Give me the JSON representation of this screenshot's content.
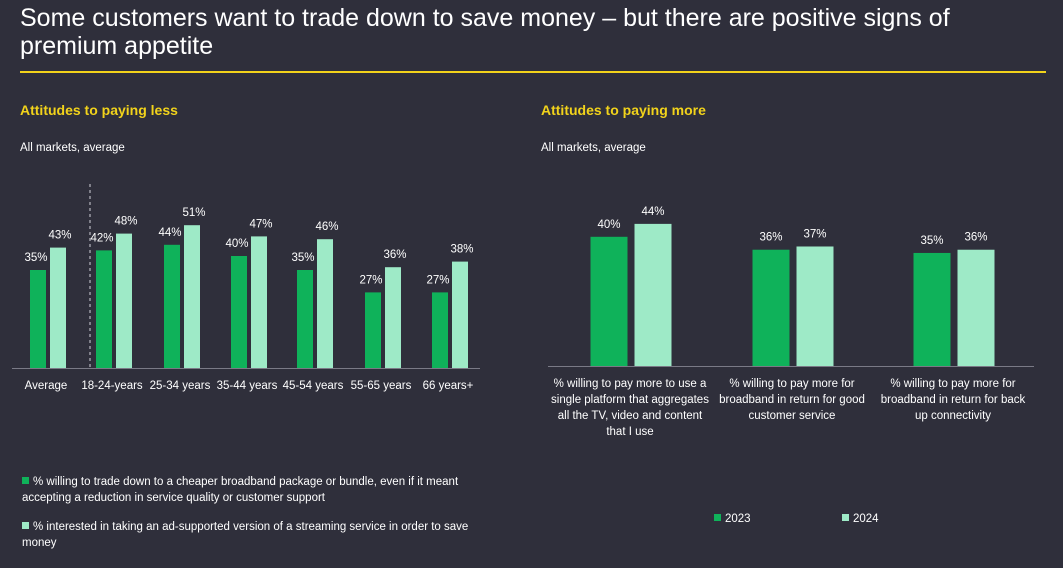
{
  "title": "Some customers want to trade down to save money – but there are positive signs of premium appetite",
  "colors": {
    "series_2023": "#0fb25a",
    "series_2024": "#9eeac7",
    "accent": "#f2d31b",
    "background": "#2f2f3b"
  },
  "chart_data": [
    {
      "type": "bar",
      "title": "Attitudes to paying less",
      "subtitle": "All markets, average",
      "categories": [
        "Average",
        "18-24-years",
        "25-34 years",
        "35-44 years",
        "45-54 years",
        "55-65 years",
        "66 years+"
      ],
      "series": [
        {
          "name": "% willing to trade down to a cheaper broadband package or bundle, even if it meant accepting a reduction in service quality or customer support",
          "values": [
            35,
            42,
            44,
            40,
            35,
            27,
            27
          ]
        },
        {
          "name": "% interested in taking an ad-supported version of a streaming service in order to save money",
          "values": [
            43,
            48,
            51,
            47,
            46,
            36,
            38
          ]
        }
      ],
      "value_labels": [
        [
          "35%",
          "42%",
          "44%",
          "40%",
          "35%",
          "27%",
          "27%"
        ],
        [
          "43%",
          "48%",
          "51%",
          "47%",
          "46%",
          "36%",
          "38%"
        ]
      ],
      "ylim": [
        0,
        60
      ],
      "legend_position": "bottom"
    },
    {
      "type": "bar",
      "title": "Attitudes to paying more",
      "subtitle": "All markets, average",
      "categories": [
        "% willing to pay more to use a single platform that aggregates all the TV, video and content that I use",
        "% willing to pay more for broadband in return for good customer service",
        "% willing to pay more for broadband in return for back up connectivity"
      ],
      "series": [
        {
          "name": "2023",
          "values": [
            40,
            36,
            35
          ]
        },
        {
          "name": "2024",
          "values": [
            44,
            37,
            36
          ]
        }
      ],
      "value_labels": [
        [
          "40%",
          "36%",
          "35%"
        ],
        [
          "44%",
          "37%",
          "36%"
        ]
      ],
      "ylim": [
        0,
        48
      ],
      "legend_position": "bottom"
    }
  ]
}
